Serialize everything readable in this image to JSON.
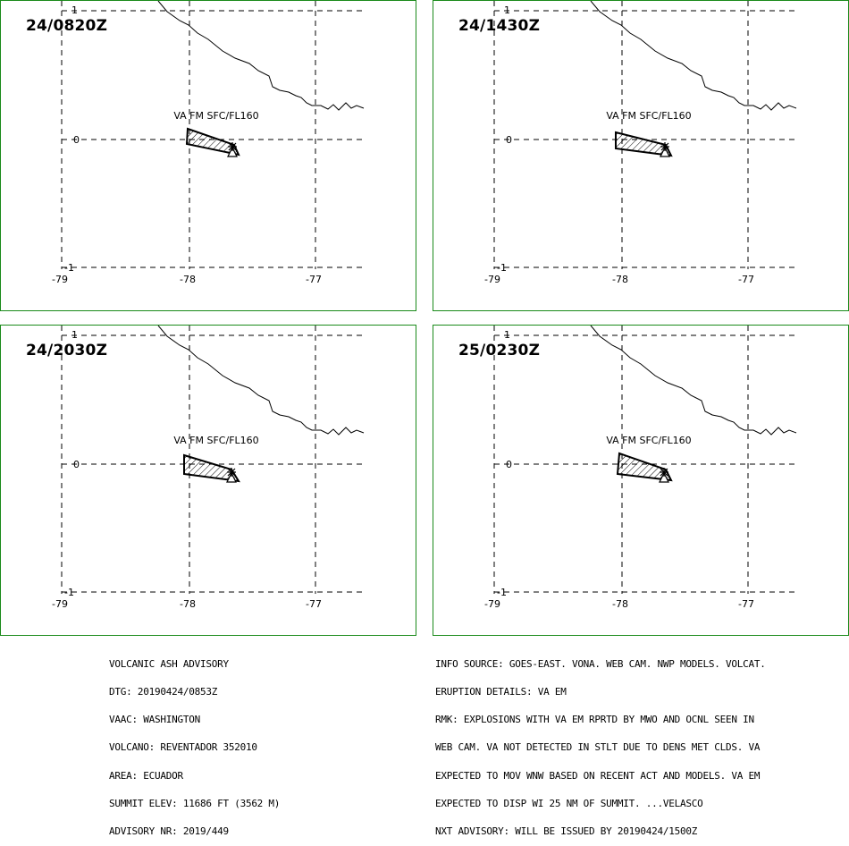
{
  "panels": [
    {
      "time": "24/0820Z",
      "layer": "VA FM SFC/FL160"
    },
    {
      "time": "24/1430Z",
      "layer": "VA FM SFC/FL160"
    },
    {
      "time": "24/2030Z",
      "layer": "VA FM SFC/FL160"
    },
    {
      "time": "25/0230Z",
      "layer": "VA FM SFC/FL160"
    }
  ],
  "axes": {
    "lon_labels": [
      "-79",
      "-78",
      "-77"
    ],
    "lat_labels": [
      "1",
      "0",
      "-1"
    ]
  },
  "advisory_left": [
    "VOLCANIC ASH ADVISORY",
    "DTG: 20190424/0853Z",
    "VAAC: WASHINGTON",
    "VOLCANO: REVENTADOR 352010",
    "AREA: ECUADOR",
    "SUMMIT ELEV: 11686 FT (3562 M)",
    "ADVISORY NR: 2019/449"
  ],
  "advisory_right": [
    "INFO SOURCE: GOES-EAST. VONA. WEB CAM. NWP MODELS. VOLCAT.",
    "ERUPTION DETAILS: VA EM",
    "RMK: EXPLOSIONS WITH VA EM RPRTD BY MWO AND OCNL SEEN IN",
    "WEB CAM. VA NOT DETECTED IN STLT DUE TO DENS MET CLDS. VA",
    "EXPECTED TO MOV WNW BASED ON RECENT ACT AND MODELS. VA EM",
    "EXPECTED TO DISP WI 25 NM OF SUMMIT. ...VELASCO",
    "NXT ADVISORY: WILL BE ISSUED BY 20190424/1500Z"
  ],
  "colors": {
    "panel_border": "#1a8a1a",
    "lines": "#000000"
  }
}
